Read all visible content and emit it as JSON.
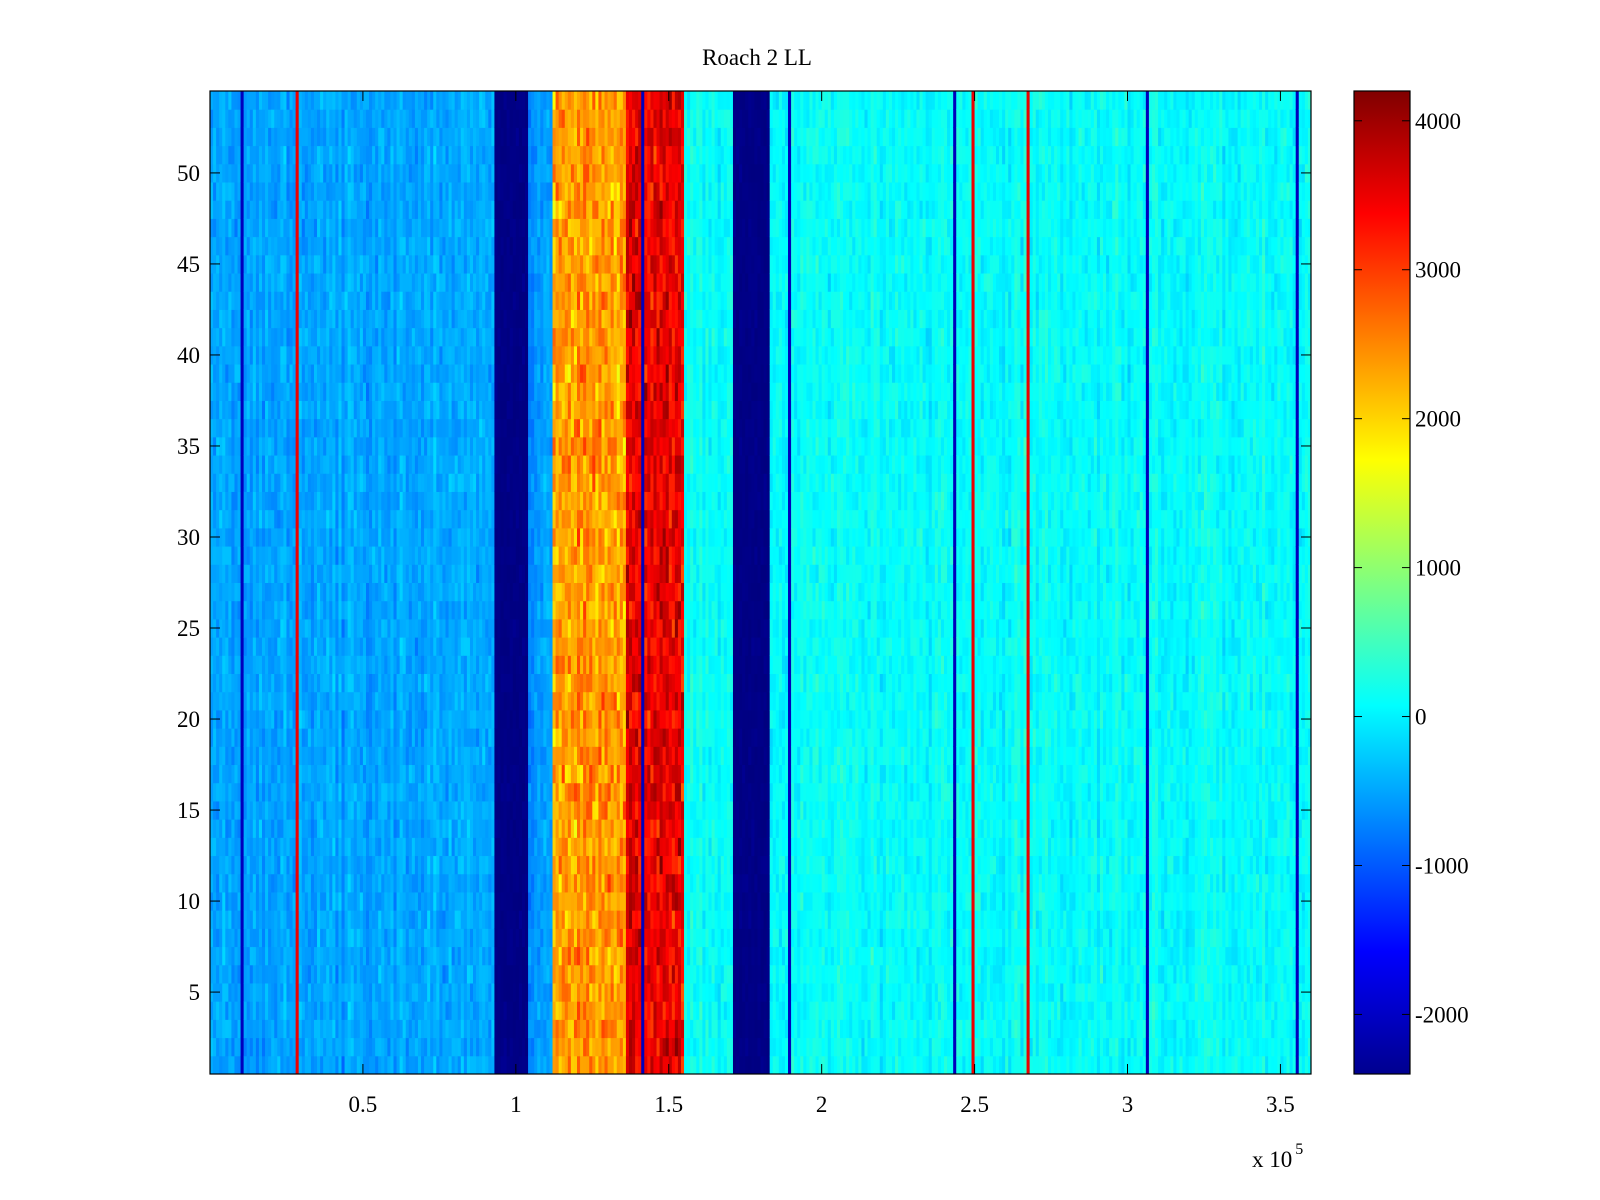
{
  "chart_data": {
    "type": "heatmap",
    "title": "Roach 2 LL",
    "xlabel": "",
    "ylabel": "",
    "x_multiplier_label": "x 10",
    "x_multiplier_exponent": "5",
    "xlim": [
      0.0,
      3.6
    ],
    "ylim": [
      0.5,
      54.5
    ],
    "x_ticks": [
      0.5,
      1,
      1.5,
      2,
      2.5,
      3,
      3.5
    ],
    "x_tick_labels": [
      "0.5",
      "1",
      "1.5",
      "2",
      "2.5",
      "3",
      "3.5"
    ],
    "y_ticks": [
      5,
      10,
      15,
      20,
      25,
      30,
      35,
      40,
      45,
      50
    ],
    "y_tick_labels": [
      "5",
      "10",
      "15",
      "20",
      "25",
      "30",
      "35",
      "40",
      "45",
      "50"
    ],
    "rows": 54,
    "colormap": "jet",
    "colorbar": {
      "range": [
        -2400,
        4200
      ],
      "ticks": [
        -2000,
        -1000,
        0,
        1000,
        2000,
        3000,
        4000
      ],
      "tick_labels": [
        "-2000",
        "-1000",
        "0",
        "1000",
        "2000",
        "3000",
        "4000"
      ]
    },
    "value_regions": [
      {
        "x_range": [
          0.0,
          0.93
        ],
        "value": -500,
        "description": "noisy mid-blue background"
      },
      {
        "x_range": [
          0.93,
          1.04
        ],
        "value": -2400,
        "description": "deep blue band"
      },
      {
        "x_range": [
          1.04,
          1.12
        ],
        "value": -600,
        "description": "transition"
      },
      {
        "x_range": [
          1.12,
          1.36
        ],
        "value": 2400,
        "description": "orange band"
      },
      {
        "x_range": [
          1.36,
          1.55
        ],
        "value": 3500,
        "description": "dark red band"
      },
      {
        "x_range": [
          1.55,
          1.71
        ],
        "value": 100,
        "description": "cyan transition"
      },
      {
        "x_range": [
          1.71,
          1.83
        ],
        "value": -2400,
        "description": "deep blue band"
      },
      {
        "x_range": [
          1.83,
          3.6
        ],
        "value": 100,
        "description": "noisy cyan background"
      }
    ],
    "grid": false
  }
}
